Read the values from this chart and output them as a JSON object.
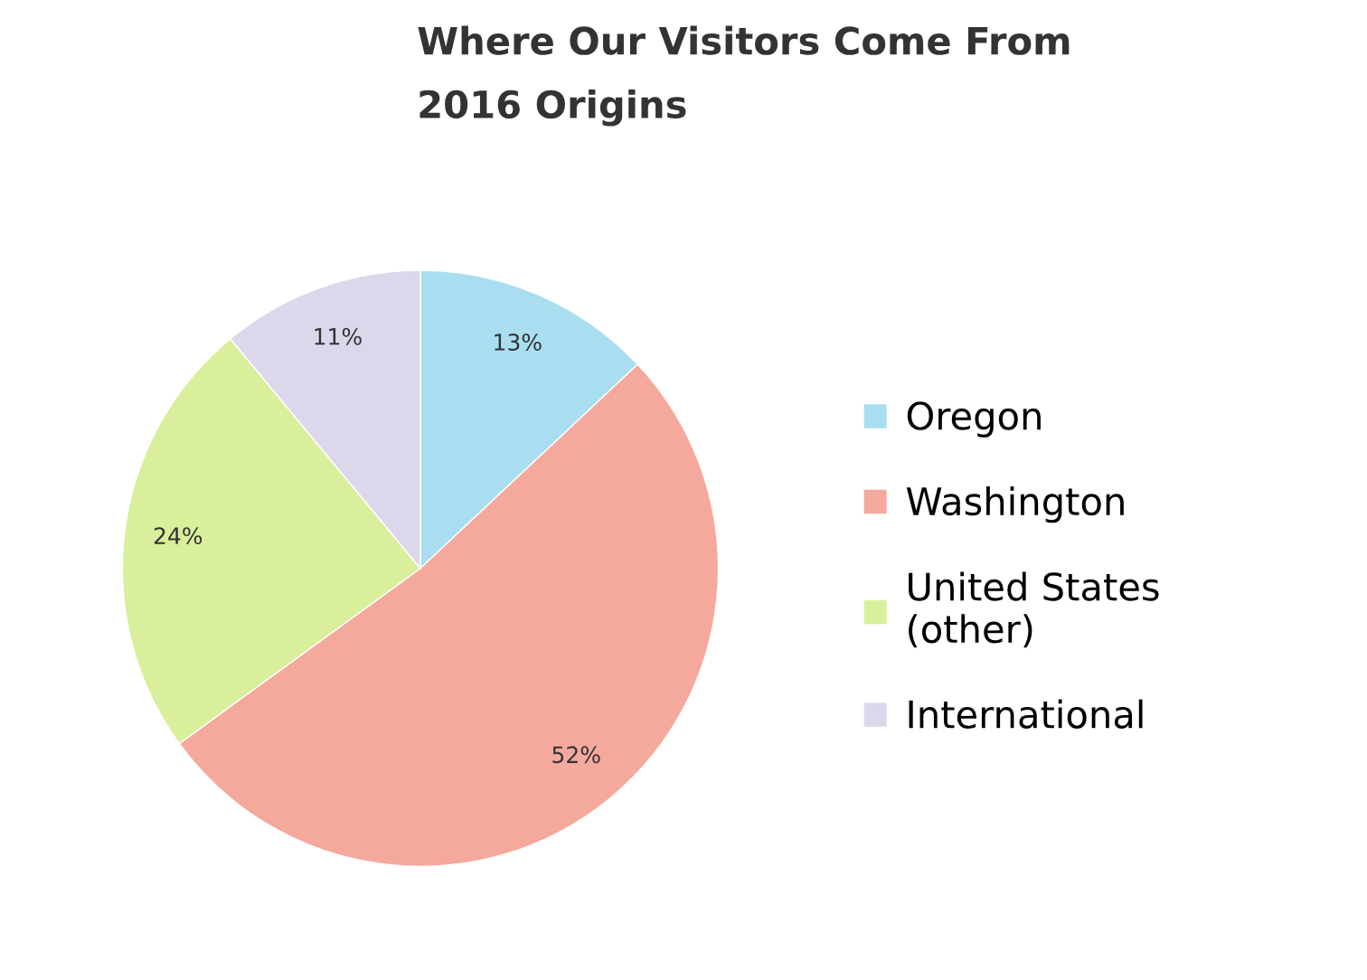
{
  "chart_data": {
    "type": "pie",
    "title": "Where Our Visitors Come From",
    "subtitle": "2016 Origins",
    "categories": [
      "Oregon",
      "Washington",
      "United States (other)",
      "International"
    ],
    "values": [
      13,
      52,
      24,
      11
    ],
    "colors": [
      "#a9def0",
      "#f5a89c",
      "#d9ef9c",
      "#ddd7ec"
    ],
    "value_labels": [
      "13%",
      "52%",
      "24%",
      "11%"
    ],
    "legend": "right"
  }
}
